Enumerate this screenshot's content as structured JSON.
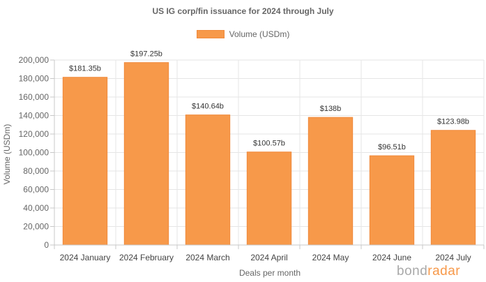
{
  "chart_data": {
    "type": "bar",
    "title": "US IG corp/fin issuance for 2024 through July",
    "xlabel": "Deals per month",
    "ylabel": "Volume (USDm)",
    "ylim": [
      0,
      200000
    ],
    "yticks": [
      0,
      20000,
      40000,
      60000,
      80000,
      100000,
      120000,
      140000,
      160000,
      180000,
      200000
    ],
    "ytick_labels": [
      "0",
      "20,000",
      "40,000",
      "60,000",
      "80,000",
      "100,000",
      "120,000",
      "140,000",
      "160,000",
      "180,000",
      "200,000"
    ],
    "grid": true,
    "legend_position": "top-center",
    "categories": [
      "2024 January",
      "2024 February",
      "2024 March",
      "2024 April",
      "2024 May",
      "2024 June",
      "2024 July"
    ],
    "series": [
      {
        "name": "Volume (USDm)",
        "color": "#f7994a",
        "values": [
          181350,
          197250,
          140640,
          100570,
          138000,
          96510,
          123980
        ],
        "data_labels": [
          "$181.35b",
          "$197.25b",
          "$140.64b",
          "$100.57b",
          "$138b",
          "$96.51b",
          "$123.98b"
        ]
      }
    ]
  },
  "brand": {
    "part1": "bond",
    "part2": "radar",
    "accent_color": "#f7994a"
  }
}
